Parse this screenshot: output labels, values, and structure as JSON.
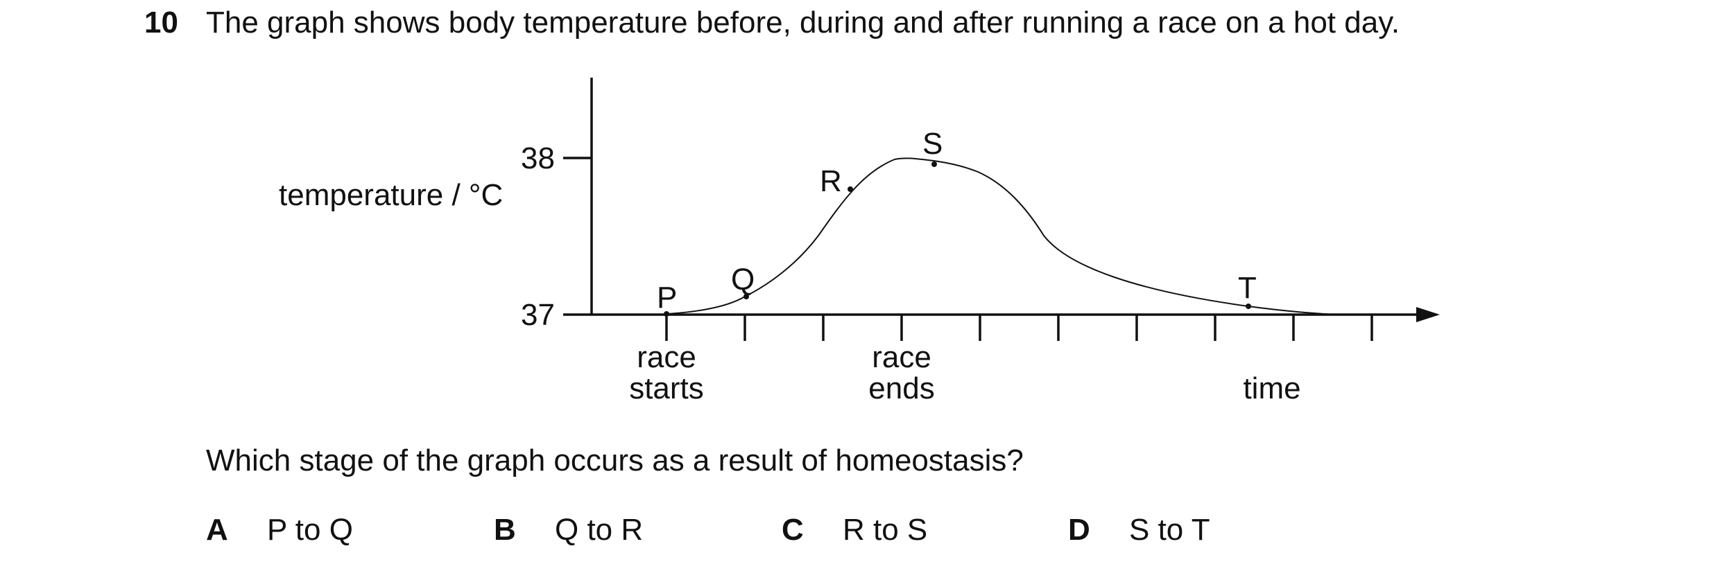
{
  "question": {
    "number": "10",
    "stem": "The graph shows body temperature before, during and after running a race on a hot day.",
    "prompt": "Which stage of the graph occurs as a result of homeostasis?"
  },
  "chart_data": {
    "type": "line",
    "ylabel": "temperature / °C",
    "yticks": [
      "38",
      "37"
    ],
    "xlabel": "time",
    "x_annotations": [
      {
        "lines": [
          "race",
          "starts"
        ]
      },
      {
        "lines": [
          "race",
          "ends"
        ]
      }
    ],
    "points": [
      {
        "label": "P"
      },
      {
        "label": "Q"
      },
      {
        "label": "R"
      },
      {
        "label": "S"
      },
      {
        "label": "T"
      }
    ]
  },
  "options": [
    {
      "letter": "A",
      "text": "P to Q"
    },
    {
      "letter": "B",
      "text": "Q to R"
    },
    {
      "letter": "C",
      "text": "R to S"
    },
    {
      "letter": "D",
      "text": "S to T"
    }
  ]
}
